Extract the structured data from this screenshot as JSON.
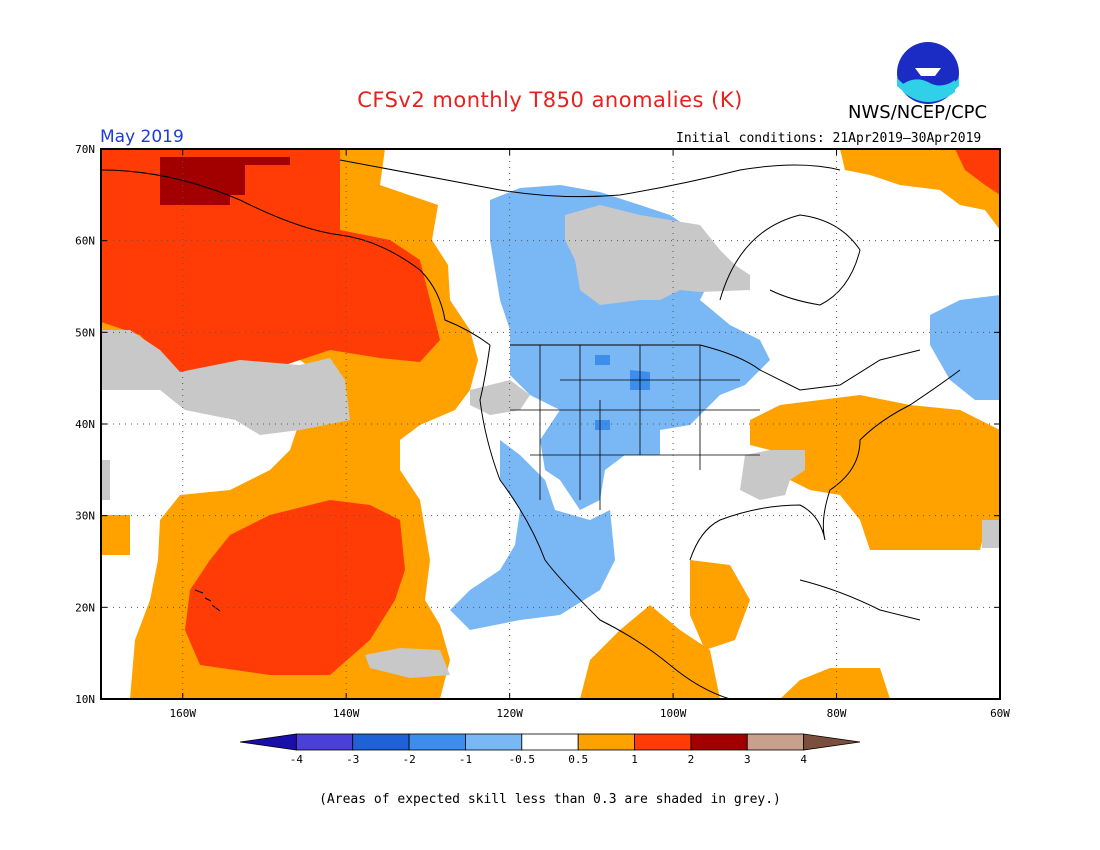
{
  "title": "CFSv2 monthly T850 anomalies (K)",
  "org": "NWS/NCEP/CPC",
  "logo_text": "NOAA",
  "period": "May 2019",
  "initial_conditions": "Initial conditions: 21Apr2019–30Apr2019",
  "caption": "(Areas of expected skill less than 0.3 are shaded in grey.)",
  "map": {
    "lon_range": [
      -170,
      -60
    ],
    "lat_range": [
      10,
      70
    ],
    "lat_ticks": [
      {
        "value": 70,
        "label": "70N"
      },
      {
        "value": 60,
        "label": "60N"
      },
      {
        "value": 50,
        "label": "50N"
      },
      {
        "value": 40,
        "label": "40N"
      },
      {
        "value": 30,
        "label": "30N"
      },
      {
        "value": 20,
        "label": "20N"
      },
      {
        "value": 10,
        "label": "10N"
      }
    ],
    "lon_ticks": [
      {
        "value": -160,
        "label": "160W"
      },
      {
        "value": -140,
        "label": "140W"
      },
      {
        "value": -120,
        "label": "120W"
      },
      {
        "value": -100,
        "label": "100W"
      },
      {
        "value": -80,
        "label": "80W"
      },
      {
        "value": -60,
        "label": "60W"
      }
    ],
    "grid": "dotted"
  },
  "colorbar": {
    "boundaries": [
      "-4",
      "-3",
      "-2",
      "-1",
      "-0.5",
      "0.5",
      "1",
      "2",
      "3",
      "4"
    ],
    "colors": [
      "#1a0ea8",
      "#4a3fd6",
      "#1f62d8",
      "#3d8eec",
      "#7ab8f5",
      "#ffffff",
      "#ffa200",
      "#ff3c06",
      "#a20000",
      "#c8a08c",
      "#7a4f3b"
    ],
    "skill_grey": "#c8c8c8"
  },
  "colors": {
    "title": "#e8201e",
    "period": "#1f3bd4",
    "orange": "#ffa200",
    "red": "#ff3c06",
    "darkred": "#a20000",
    "lightblue": "#7ab8f5",
    "blue": "#3d8eec",
    "grey": "#c8c8c8"
  }
}
